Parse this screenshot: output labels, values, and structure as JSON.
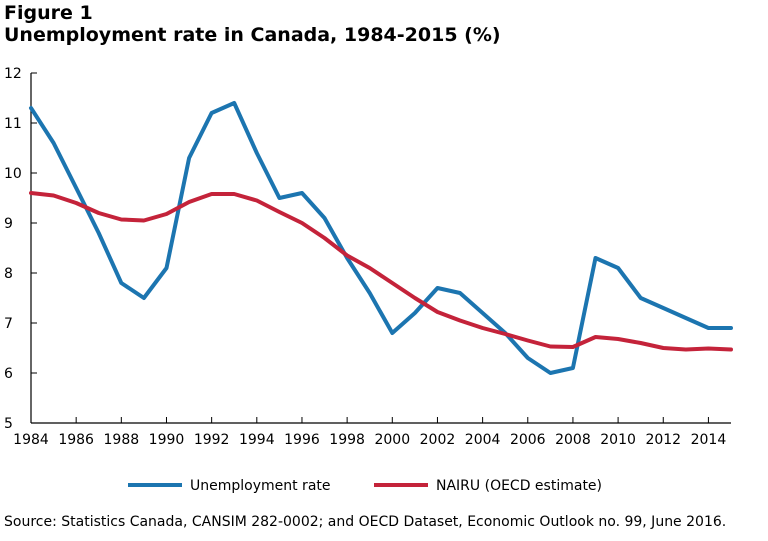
{
  "figure_label": "Figure 1",
  "title": "Unemployment rate in Canada, 1984-2015 (%)",
  "source": "Source: Statistics Canada, CANSIM 282-0002; and OECD Dataset, Economic Outlook no. 99, June 2016.",
  "chart_data": {
    "type": "line",
    "x": [
      1984,
      1985,
      1986,
      1987,
      1988,
      1989,
      1990,
      1991,
      1992,
      1993,
      1994,
      1995,
      1996,
      1997,
      1998,
      1999,
      2000,
      2001,
      2002,
      2003,
      2004,
      2005,
      2006,
      2007,
      2008,
      2009,
      2010,
      2011,
      2012,
      2013,
      2014,
      2015
    ],
    "xticks": [
      "1984",
      "1986",
      "1988",
      "1990",
      "1992",
      "1994",
      "1996",
      "1998",
      "2000",
      "2002",
      "2004",
      "2006",
      "2008",
      "2010",
      "2012",
      "2014"
    ],
    "yticks": [
      "5",
      "6",
      "7",
      "8",
      "9",
      "10",
      "11",
      "12"
    ],
    "ylim": [
      5,
      12
    ],
    "xlim": [
      1984,
      2015
    ],
    "grid": false,
    "legend_position": "bottom",
    "series": [
      {
        "name": "Unemployment rate",
        "color": "#1c75b0",
        "values": [
          11.3,
          10.6,
          9.7,
          8.8,
          7.8,
          7.5,
          8.1,
          10.3,
          11.2,
          11.4,
          10.4,
          9.5,
          9.6,
          9.1,
          8.3,
          7.6,
          6.8,
          7.2,
          7.7,
          7.6,
          7.2,
          6.8,
          6.3,
          6.0,
          6.1,
          8.3,
          8.1,
          7.5,
          7.3,
          7.1,
          6.9,
          6.9
        ]
      },
      {
        "name": "NAIRU (OECD estimate)",
        "color": "#c4233a",
        "values": [
          9.6,
          9.55,
          9.4,
          9.2,
          9.07,
          9.05,
          9.18,
          9.42,
          9.58,
          9.58,
          9.45,
          9.22,
          9.0,
          8.7,
          8.35,
          8.1,
          7.8,
          7.5,
          7.22,
          7.05,
          6.9,
          6.78,
          6.65,
          6.53,
          6.52,
          6.72,
          6.68,
          6.6,
          6.5,
          6.47,
          6.49,
          6.47
        ]
      }
    ]
  }
}
